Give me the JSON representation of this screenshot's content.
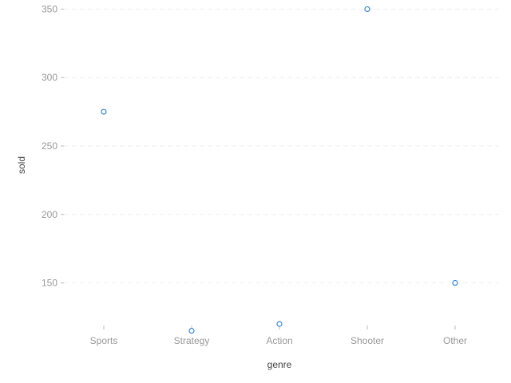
{
  "chart_data": {
    "type": "scatter",
    "categories": [
      "Sports",
      "Strategy",
      "Action",
      "Shooter",
      "Other"
    ],
    "series": [
      {
        "values": [
          275,
          115,
          120,
          350,
          150
        ]
      }
    ],
    "xlabel": "genre",
    "ylabel": "sold",
    "ylim": [
      113,
      352
    ],
    "yticks": [
      150,
      200,
      250,
      300,
      350
    ],
    "grid": true,
    "marker": "hollow-circle",
    "colors": {
      "point": "#3a86d4",
      "grid": "#eeeeee",
      "tick_label": "#999999",
      "axis_title": "#444444"
    }
  }
}
